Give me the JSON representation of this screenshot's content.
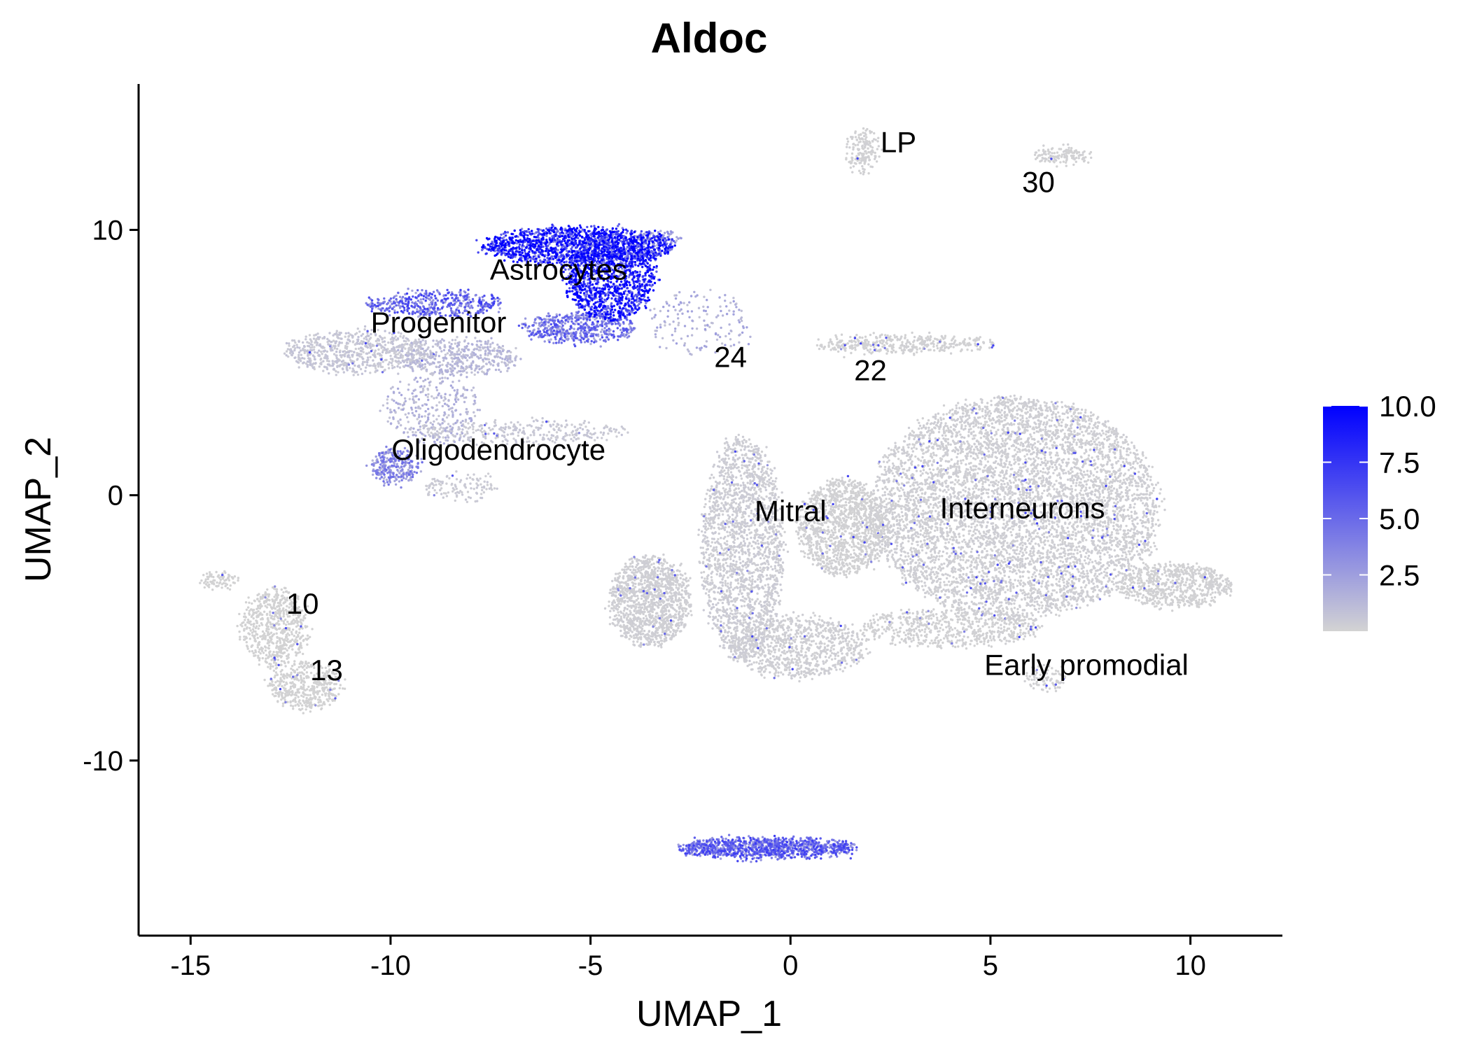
{
  "chart_data": {
    "type": "scatter",
    "title": "Aldoc",
    "xlabel": "UMAP_1",
    "ylabel": "UMAP_2",
    "xlim": [
      -16.3,
      12.3
    ],
    "ylim": [
      -16.6,
      15.5
    ],
    "xticks": [
      -15,
      -10,
      -5,
      0,
      5,
      10
    ],
    "yticks": [
      -10,
      0,
      10
    ],
    "tick_labels_x": [
      "-15",
      "-10",
      "-5",
      "0",
      "5",
      "10"
    ],
    "tick_labels_y": [
      "-10",
      "0",
      "10"
    ],
    "grid": false,
    "legend_position": "right",
    "colorbar": {
      "min": 0,
      "max": 10.0,
      "ticks": [
        10.0,
        7.5,
        5.0,
        2.5
      ],
      "tick_labels": [
        "10.0",
        "7.5",
        "5.0",
        "2.5"
      ],
      "low_color": "#d3d3d3",
      "high_color": "#0000ff"
    },
    "cluster_labels": [
      {
        "text": "Astrocytes",
        "x": -5.8,
        "y": 8.5
      },
      {
        "text": "Progenitor",
        "x": -8.8,
        "y": 6.5
      },
      {
        "text": "Oligodendrocyte",
        "x": -7.3,
        "y": 1.7
      },
      {
        "text": "24",
        "x": -1.5,
        "y": 5.2
      },
      {
        "text": "22",
        "x": 2.0,
        "y": 4.7
      },
      {
        "text": "LP",
        "x": 2.7,
        "y": 13.3
      },
      {
        "text": "30",
        "x": 6.2,
        "y": 11.8
      },
      {
        "text": "Mitral",
        "x": 0.0,
        "y": -0.6
      },
      {
        "text": "Interneurons",
        "x": 5.8,
        "y": -0.5
      },
      {
        "text": "10",
        "x": -12.2,
        "y": -4.1
      },
      {
        "text": "13",
        "x": -11.6,
        "y": -6.6
      },
      {
        "text": "Early promodial",
        "x": 7.4,
        "y": -6.4
      }
    ],
    "clusters": [
      {
        "id": "astro_top",
        "cx": -5.3,
        "cy": 9.4,
        "rx": 2.4,
        "ry": 0.7,
        "n": 1500,
        "expr": 8.5
      },
      {
        "id": "astro_core",
        "cx": -4.5,
        "cy": 8.2,
        "rx": 1.1,
        "ry": 1.6,
        "n": 1300,
        "expr": 8.8
      },
      {
        "id": "astro_tail",
        "cx": -5.3,
        "cy": 6.3,
        "rx": 1.4,
        "ry": 0.55,
        "n": 550,
        "expr": 4.5
      },
      {
        "id": "astro_right",
        "cx": -3.3,
        "cy": 9.7,
        "rx": 0.5,
        "ry": 0.25,
        "n": 80,
        "expr": 2.5
      },
      {
        "id": "prog_top",
        "cx": -8.9,
        "cy": 7.2,
        "rx": 1.7,
        "ry": 0.45,
        "n": 450,
        "expr": 5.0
      },
      {
        "id": "prog_left",
        "cx": -10.8,
        "cy": 5.4,
        "rx": 1.8,
        "ry": 0.8,
        "n": 700,
        "expr": 0.6
      },
      {
        "id": "prog_mid",
        "cx": -8.3,
        "cy": 5.2,
        "rx": 1.5,
        "ry": 0.7,
        "n": 450,
        "expr": 1.2
      },
      {
        "id": "oligo_stream",
        "cx": -9.0,
        "cy": 3.2,
        "rx": 1.2,
        "ry": 1.3,
        "n": 300,
        "expr": 1.5
      },
      {
        "id": "oligo_main",
        "cx": -9.9,
        "cy": 1.1,
        "rx": 0.6,
        "ry": 0.6,
        "n": 280,
        "expr": 3.5
      },
      {
        "id": "oligo_band",
        "cx": -6.8,
        "cy": 2.4,
        "rx": 2.7,
        "ry": 0.4,
        "n": 320,
        "expr": 0.5
      },
      {
        "id": "oligo_tail",
        "cx": -8.2,
        "cy": 0.3,
        "rx": 0.9,
        "ry": 0.5,
        "n": 120,
        "expr": 0.4
      },
      {
        "id": "c24",
        "cx": -2.2,
        "cy": 6.5,
        "rx": 1.3,
        "ry": 1.2,
        "n": 150,
        "expr": 1.8
      },
      {
        "id": "c22",
        "cx": 2.8,
        "cy": 5.7,
        "rx": 2.3,
        "ry": 0.3,
        "n": 400,
        "expr": 0.1
      },
      {
        "id": "lp",
        "cx": 1.8,
        "cy": 13.0,
        "rx": 0.35,
        "ry": 0.8,
        "n": 170,
        "expr": 0.1
      },
      {
        "id": "c30",
        "cx": 6.8,
        "cy": 12.8,
        "rx": 0.7,
        "ry": 0.3,
        "n": 140,
        "expr": 0.1
      },
      {
        "id": "inter_main",
        "cx": 5.6,
        "cy": -0.5,
        "rx": 3.6,
        "ry": 4.2,
        "n": 6500,
        "expr": 0.2
      },
      {
        "id": "inter_right",
        "cx": 9.6,
        "cy": -3.4,
        "rx": 1.4,
        "ry": 0.8,
        "n": 700,
        "expr": 0.1
      },
      {
        "id": "inter_bottom",
        "cx": 4.0,
        "cy": -5.0,
        "rx": 2.2,
        "ry": 0.7,
        "n": 650,
        "expr": 0.1
      },
      {
        "id": "mitral_band",
        "cx": -1.2,
        "cy": -2.0,
        "rx": 1.0,
        "ry": 4.2,
        "n": 2000,
        "expr": 0.3
      },
      {
        "id": "mitral_left",
        "cx": -3.5,
        "cy": -4.0,
        "rx": 1.0,
        "ry": 1.7,
        "n": 1300,
        "expr": 0.2
      },
      {
        "id": "mitral_center",
        "cx": 1.3,
        "cy": -1.2,
        "rx": 1.1,
        "ry": 1.8,
        "n": 1300,
        "expr": 0.1
      },
      {
        "id": "mitral_bottom",
        "cx": 0.2,
        "cy": -5.7,
        "rx": 1.7,
        "ry": 1.2,
        "n": 900,
        "expr": 0.2
      },
      {
        "id": "c10",
        "cx": -12.9,
        "cy": -5.0,
        "rx": 0.8,
        "ry": 1.5,
        "n": 650,
        "expr": 0.05
      },
      {
        "id": "c13",
        "cx": -12.1,
        "cy": -7.2,
        "rx": 0.9,
        "ry": 0.9,
        "n": 450,
        "expr": 0.05
      },
      {
        "id": "c10_tail",
        "cx": -14.3,
        "cy": -3.2,
        "rx": 0.5,
        "ry": 0.3,
        "n": 80,
        "expr": 0.05
      },
      {
        "id": "early_promodial",
        "cx": 6.4,
        "cy": -6.9,
        "rx": 0.5,
        "ry": 0.5,
        "n": 90,
        "expr": 0.1
      },
      {
        "id": "bottom_band",
        "cx": -0.6,
        "cy": -13.3,
        "rx": 2.2,
        "ry": 0.35,
        "n": 1100,
        "expr": 5.0
      }
    ]
  }
}
